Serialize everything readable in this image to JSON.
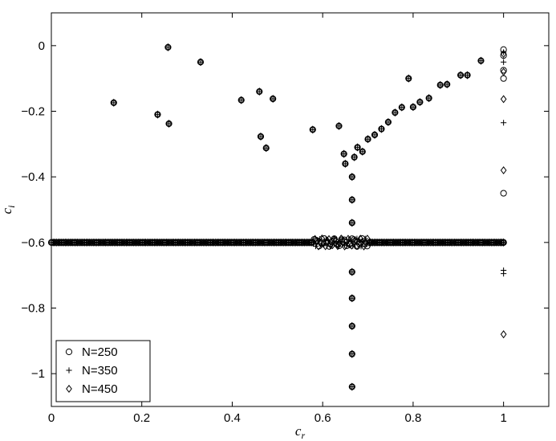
{
  "chart_data": {
    "type": "scatter",
    "xlabel": "c_r",
    "ylabel": "c_i",
    "xlim": [
      0,
      1.1
    ],
    "ylim": [
      -1.1,
      0.1
    ],
    "xticks": [
      0,
      0.2,
      0.4,
      0.6,
      0.8,
      1
    ],
    "xtick_labels": [
      "0",
      "0.2",
      "0.4",
      "0.6",
      "0.8",
      "1"
    ],
    "yticks": [
      0,
      -0.2,
      -0.4,
      -0.6,
      -0.8,
      -1
    ],
    "ytick_labels": [
      "0",
      "−0.2",
      "−0.4",
      "−0.6",
      "−0.8",
      "−1"
    ],
    "grid": false,
    "legend_position": "bottom-left",
    "markers": {
      "N=250": "circle",
      "N=350": "plus",
      "N=450": "diamond"
    },
    "common_points": [
      [
        0.138,
        -0.174
      ],
      [
        0.235,
        -0.21
      ],
      [
        0.26,
        -0.238
      ],
      [
        0.258,
        -0.005
      ],
      [
        0.33,
        -0.05
      ],
      [
        0.42,
        -0.166
      ],
      [
        0.46,
        -0.14
      ],
      [
        0.463,
        -0.277
      ],
      [
        0.475,
        -0.312
      ],
      [
        0.49,
        -0.162
      ],
      [
        0.578,
        -0.256
      ],
      [
        0.636,
        -0.245
      ],
      [
        0.647,
        -0.33
      ],
      [
        0.65,
        -0.36
      ],
      [
        0.67,
        -0.34
      ],
      [
        0.677,
        -0.31
      ],
      [
        0.688,
        -0.323
      ],
      [
        0.7,
        -0.285
      ],
      [
        0.715,
        -0.272
      ],
      [
        0.73,
        -0.254
      ],
      [
        0.745,
        -0.233
      ],
      [
        0.76,
        -0.204
      ],
      [
        0.775,
        -0.188
      ],
      [
        0.79,
        -0.1
      ],
      [
        0.8,
        -0.187
      ],
      [
        0.815,
        -0.172
      ],
      [
        0.835,
        -0.16
      ],
      [
        0.86,
        -0.12
      ],
      [
        0.875,
        -0.118
      ],
      [
        0.905,
        -0.09
      ],
      [
        0.92,
        -0.09
      ],
      [
        0.95,
        -0.046
      ],
      [
        0.665,
        -0.4
      ],
      [
        0.665,
        -0.47
      ],
      [
        0.665,
        -0.54
      ],
      [
        0.665,
        -0.69
      ],
      [
        0.665,
        -0.77
      ],
      [
        0.665,
        -0.855
      ],
      [
        0.665,
        -0.94
      ],
      [
        0.665,
        -1.04
      ]
    ],
    "series": [
      {
        "name": "N=250",
        "points": [
          [
            1.0,
            -0.012
          ],
          [
            1.0,
            -0.03
          ],
          [
            1.0,
            -0.075
          ],
          [
            1.0,
            -0.1
          ],
          [
            1.0,
            -0.45
          ],
          [
            1.0,
            -0.6
          ]
        ],
        "line_start": 0,
        "line_end": 1.0,
        "line_count": 180,
        "line_y": -0.6
      },
      {
        "name": "N=350",
        "points": [
          [
            1.0,
            -0.02
          ],
          [
            1.0,
            -0.05
          ],
          [
            1.0,
            -0.235
          ],
          [
            1.0,
            -0.685
          ],
          [
            1.0,
            -0.695
          ],
          [
            1.0,
            -0.6
          ]
        ],
        "line_start": 0,
        "line_end": 1.0,
        "line_count": 220,
        "line_y": -0.6
      },
      {
        "name": "N=450",
        "points": [
          [
            1.0,
            -0.025
          ],
          [
            1.0,
            -0.08
          ],
          [
            1.0,
            -0.163
          ],
          [
            1.0,
            -0.38
          ],
          [
            1.0,
            -0.88
          ],
          [
            1.0,
            -0.6
          ]
        ],
        "line_start": 0,
        "line_end": 1.0,
        "line_count": 260,
        "line_y": -0.6
      }
    ]
  }
}
